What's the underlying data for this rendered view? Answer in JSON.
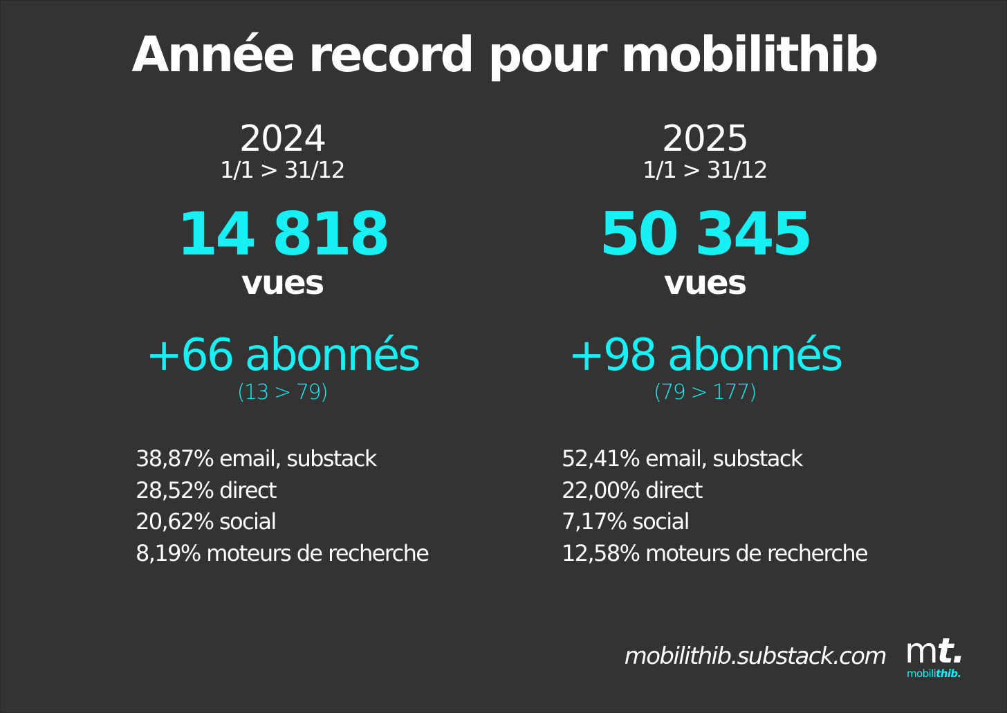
{
  "title": "Année record pour mobilithib",
  "colors": {
    "background": "#333333",
    "text": "#ffffff",
    "accent": "#17f1f5"
  },
  "columns": [
    {
      "year": "2024",
      "range": "1/1 > 31/12",
      "views": "14 818",
      "views_label": "vues",
      "subscribers": "+66 abonnés",
      "subscribers_range": "(13 > 79)",
      "sources": [
        "38,87% email, substack",
        "28,52% direct",
        "20,62% social",
        "8,19% moteurs de recherche"
      ]
    },
    {
      "year": "2025",
      "range": "1/1 > 31/12",
      "views": "50 345",
      "views_label": "vues",
      "subscribers": "+98 abonnés",
      "subscribers_range": "(79 > 177)",
      "sources": [
        "52,41% email, substack",
        "22,00% direct",
        "7,17% social",
        "12,58% moteurs de recherche"
      ]
    }
  ],
  "footer": {
    "url": "mobilithib.substack.com",
    "logo_mark_m": "m",
    "logo_mark_t": "t.",
    "logo_name_light": "mobili",
    "logo_name_bold": "thib."
  }
}
